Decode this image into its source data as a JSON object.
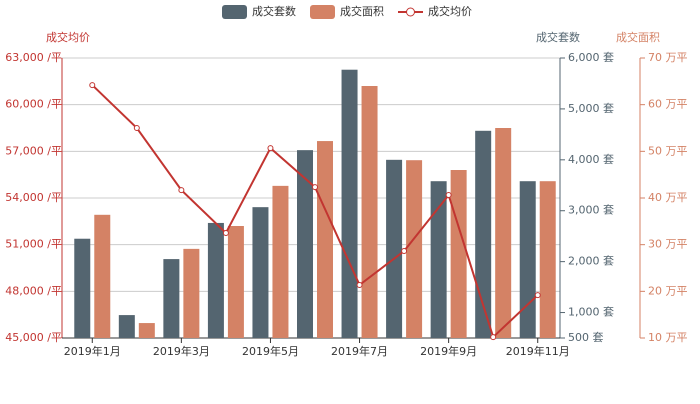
{
  "chart_data": {
    "type": "bar-line",
    "categories": [
      "2019年1月",
      null,
      "2019年3月",
      null,
      "2019年5月",
      null,
      "2019年7月",
      null,
      "2019年9月",
      null,
      "2019年11月"
    ],
    "series": [
      {
        "name": "成交套数",
        "type": "bar",
        "axis": "y2",
        "color": "#546570",
        "values": [
          2450,
          950,
          2050,
          2760,
          3070,
          4190,
          5770,
          4000,
          3580,
          4570,
          3580
        ]
      },
      {
        "name": "成交面积",
        "type": "bar",
        "axis": "y3",
        "color": "#d48265",
        "values": [
          36.4,
          13.2,
          29.1,
          34.0,
          42.6,
          52.2,
          64.0,
          48.1,
          46.0,
          55.0,
          43.6
        ]
      },
      {
        "name": "成交均价",
        "type": "line",
        "axis": "y",
        "color": "#c23531",
        "values": [
          61260,
          58500,
          54510,
          51750,
          57210,
          54700,
          48410,
          50590,
          54190,
          45060,
          47760
        ]
      }
    ],
    "y_label": "成交均价",
    "y2_label": "成交套数",
    "y3_label": "成交面积",
    "ylim": [
      45000,
      63000
    ],
    "yticks": [
      {
        "value": 45000,
        "label": "45,000 /平"
      },
      {
        "value": 48000,
        "label": "48,000 /平"
      },
      {
        "value": 51000,
        "label": "51,000 /平"
      },
      {
        "value": 54000,
        "label": "54,000 /平"
      },
      {
        "value": 57000,
        "label": "57,000 /平"
      },
      {
        "value": 60000,
        "label": "60,000 /平"
      },
      {
        "value": 63000,
        "label": "63,000 /平"
      }
    ],
    "y2lim": [
      500,
      6000
    ],
    "y2ticks": [
      {
        "value": 500,
        "label": "500 套"
      },
      {
        "value": 1000,
        "label": "1,000 套"
      },
      {
        "value": 2000,
        "label": "2,000 套"
      },
      {
        "value": 3000,
        "label": "3,000 套"
      },
      {
        "value": 4000,
        "label": "4,000 套"
      },
      {
        "value": 5000,
        "label": "5,000 套"
      },
      {
        "value": 6000,
        "label": "6,000 套"
      }
    ],
    "y3lim": [
      10,
      70
    ],
    "y3ticks": [
      {
        "value": 10,
        "label": "10 万平"
      },
      {
        "value": 20,
        "label": "20 万平"
      },
      {
        "value": 30,
        "label": "30 万平"
      },
      {
        "value": 40,
        "label": "40 万平"
      },
      {
        "value": 50,
        "label": "50 万平"
      },
      {
        "value": 60,
        "label": "60 万平"
      },
      {
        "value": 70,
        "label": "70 万平"
      }
    ],
    "grid": true,
    "legend": "top"
  }
}
